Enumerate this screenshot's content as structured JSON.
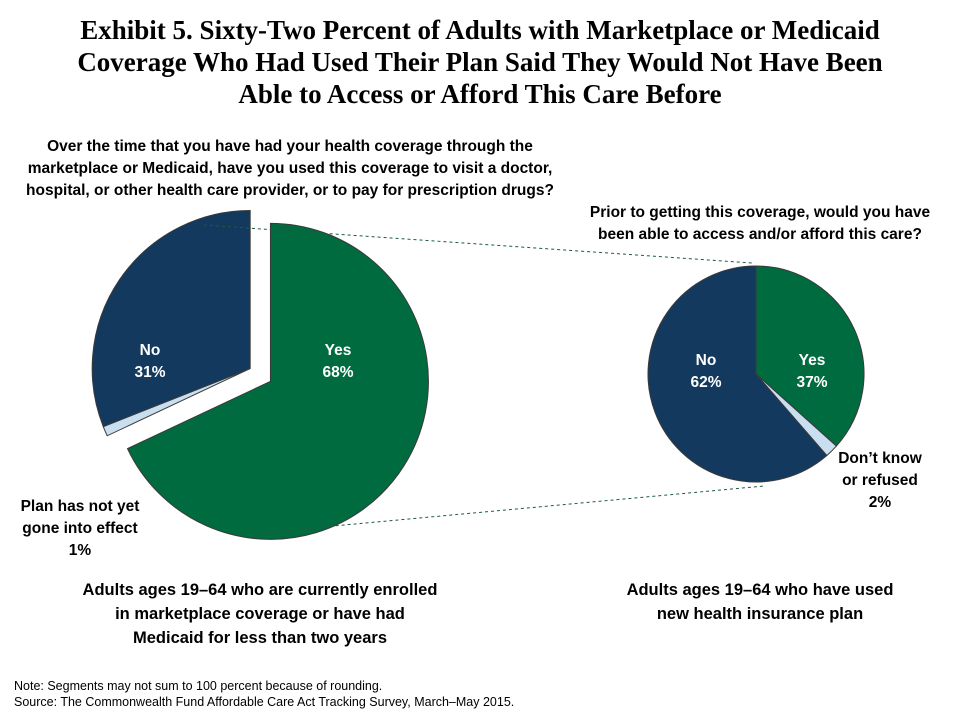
{
  "title": {
    "line1": "Exhibit 5. Sixty-Two Percent of Adults with Marketplace or Medicaid",
    "line2": "Coverage Who Had Used Their Plan Said They Would Not Have Been",
    "line3": "Able to Access or Afford This Care Before"
  },
  "colors": {
    "green": "#006B3F",
    "navy": "#13395F",
    "light_blue": "#C9DFF0",
    "outline": "#3a3a3a",
    "connector": "#1E5B40"
  },
  "chart_data": [
    {
      "type": "pie",
      "question": {
        "line1": "Over the time that you have had your health coverage through the",
        "line2": "marketplace or Medicaid, have you used this coverage to visit a doctor,",
        "line3": "hospital, or other health care provider, or to pay for prescription drugs?"
      },
      "slices": [
        {
          "label": "Yes",
          "value": 68,
          "display": "68%"
        },
        {
          "label": "Plan has not yet gone into effect",
          "value": 1,
          "display": "1%"
        },
        {
          "label": "No",
          "value": 31,
          "display": "31%"
        }
      ],
      "exploded_slice": "Yes",
      "external_label": {
        "line1": "Plan has not yet",
        "line2": "gone into effect",
        "line3": "1%"
      },
      "caption": {
        "line1": "Adults ages 19–64 who are currently enrolled",
        "line2": "in marketplace  coverage or have had",
        "line3": "Medicaid  for less than two years"
      }
    },
    {
      "type": "pie",
      "question": {
        "line1": "Prior to getting this coverage, would you have",
        "line2": "been able to access and/or afford this care?"
      },
      "slices": [
        {
          "label": "Yes",
          "value": 37,
          "display": "37%"
        },
        {
          "label": "Don’t know or refused",
          "value": 2,
          "display": "2%"
        },
        {
          "label": "No",
          "value": 62,
          "display": "62%"
        }
      ],
      "external_label": {
        "line1": "Don’t know",
        "line2": "or refused",
        "line3": "2%"
      },
      "caption": {
        "line1": "Adults ages 19–64 who have used",
        "line2": "new health insurance  plan"
      }
    }
  ],
  "note": {
    "line1": "Note: Segments may not sum to 100  percent because of rounding.",
    "line2": "Source: The Commonwealth Fund Affordable Care Act Tracking Survey, March–May 2015."
  }
}
